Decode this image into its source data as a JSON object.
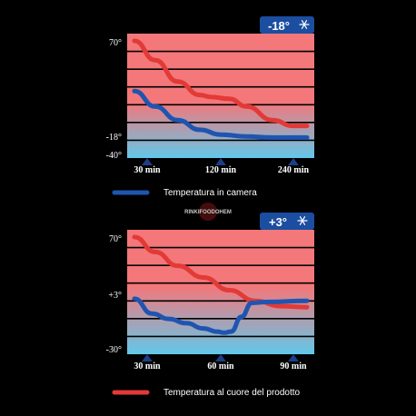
{
  "colors": {
    "hot": "#f4777a",
    "cold": "#62c8ea",
    "curve_product": "#e23a37",
    "curve_chamber": "#1f55b0",
    "badge_bg": "#1b4ea0",
    "tick": "#1b3e86"
  },
  "legend": {
    "chamber_label": "Temperatura in camera",
    "product_label": "Temperatura al cuore del prodotto"
  },
  "watermark": {
    "text": "RINKIFOODOHEM"
  },
  "chart_data": [
    {
      "type": "line",
      "badge_label": "-18°",
      "badge_icon": "snowflake-icon",
      "x_ticks": [
        "30 min",
        "120 min",
        "240 min"
      ],
      "y_ticks": [
        {
          "label": "70°",
          "value": 70
        },
        {
          "label": "-18°",
          "value": -18
        },
        {
          "label": "-40°",
          "value": -40
        }
      ],
      "ylim": [
        -40,
        70
      ],
      "grid": true,
      "series": [
        {
          "key": "product",
          "values": [
            [
              0,
              70
            ],
            [
              0.12,
              50
            ],
            [
              0.25,
              28
            ],
            [
              0.38,
              14
            ],
            [
              0.44,
              12
            ],
            [
              0.55,
              10
            ],
            [
              0.65,
              2
            ],
            [
              0.8,
              -12
            ],
            [
              0.92,
              -18
            ],
            [
              1.0,
              -18
            ]
          ]
        },
        {
          "key": "chamber",
          "values": [
            [
              0,
              18
            ],
            [
              0.12,
              2
            ],
            [
              0.25,
              -12
            ],
            [
              0.38,
              -22
            ],
            [
              0.5,
              -27
            ],
            [
              0.65,
              -29
            ],
            [
              0.8,
              -30
            ],
            [
              1.0,
              -30
            ]
          ]
        }
      ]
    },
    {
      "type": "line",
      "badge_label": "+3°",
      "badge_icon": "snowflake-icon",
      "x_ticks": [
        "30 min",
        "60 min",
        "90 min"
      ],
      "y_ticks": [
        {
          "label": "70°",
          "value": 70
        },
        {
          "label": "+3°",
          "value": 3
        },
        {
          "label": "-30°",
          "value": -30
        }
      ],
      "ylim": [
        -30,
        70
      ],
      "grid": true,
      "series": [
        {
          "key": "product",
          "values": [
            [
              0,
              70
            ],
            [
              0.12,
              56
            ],
            [
              0.25,
              43
            ],
            [
              0.4,
              32
            ],
            [
              0.55,
              20
            ],
            [
              0.7,
              10
            ],
            [
              0.85,
              5
            ],
            [
              1.0,
              4
            ]
          ]
        },
        {
          "key": "chamber",
          "values": [
            [
              0,
              12
            ],
            [
              0.1,
              -2
            ],
            [
              0.2,
              -7
            ],
            [
              0.3,
              -11
            ],
            [
              0.4,
              -16
            ],
            [
              0.48,
              -19
            ],
            [
              0.52,
              -20
            ],
            [
              0.56,
              -19
            ],
            [
              0.62,
              -5
            ],
            [
              0.68,
              8
            ],
            [
              0.78,
              9
            ],
            [
              1.0,
              10
            ]
          ]
        }
      ]
    }
  ]
}
